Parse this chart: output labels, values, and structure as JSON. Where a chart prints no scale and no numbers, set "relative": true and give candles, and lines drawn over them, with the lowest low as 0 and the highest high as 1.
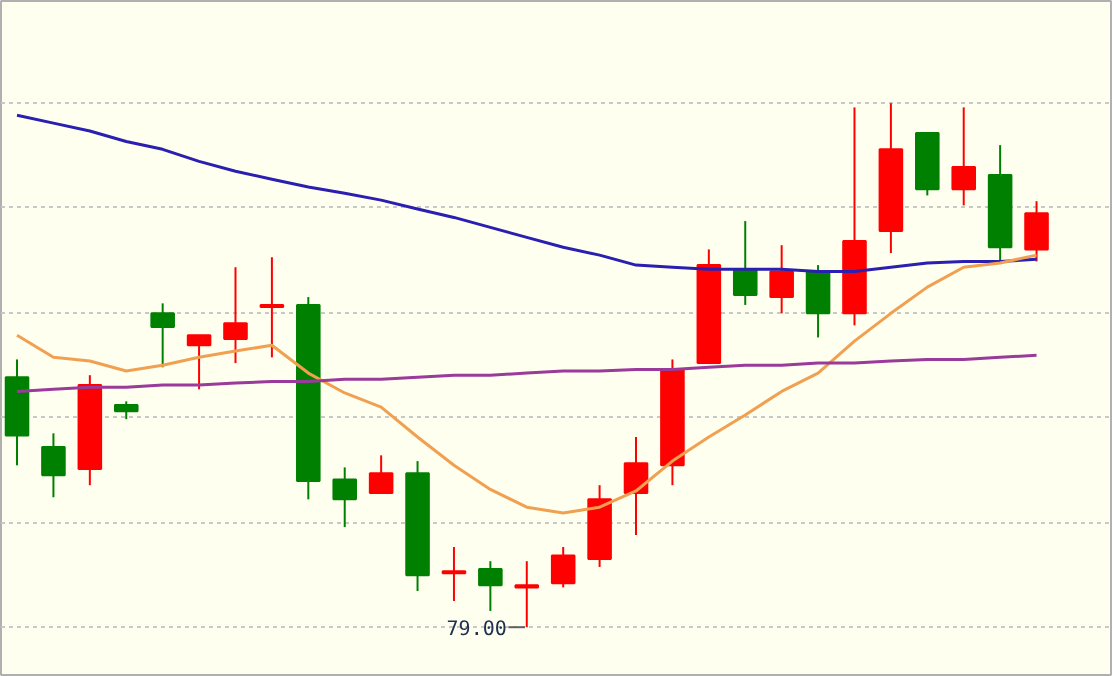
{
  "chart_data": {
    "type": "candlestick",
    "relative": true,
    "grid": "y",
    "categories": [
      null,
      null,
      null,
      null,
      null,
      null,
      null,
      null,
      null,
      null,
      null,
      null,
      null,
      null,
      null,
      null,
      null,
      null,
      null,
      null,
      null,
      null,
      null,
      null,
      null,
      null,
      null,
      null,
      null
    ],
    "ohlc": [
      [
        0.477,
        0.511,
        0.309,
        0.366
      ],
      [
        0.344,
        0.37,
        0.248,
        0.29
      ],
      [
        0.302,
        0.481,
        0.271,
        0.462
      ],
      [
        0.424,
        0.431,
        0.397,
        0.412
      ],
      [
        0.599,
        0.618,
        0.496,
        0.573
      ],
      [
        0.538,
        0.557,
        0.454,
        0.557
      ],
      [
        0.55,
        0.687,
        0.504,
        0.58
      ],
      [
        0.611,
        0.706,
        0.515,
        0.615
      ],
      [
        0.615,
        0.63,
        0.244,
        0.279
      ],
      [
        0.282,
        0.305,
        0.191,
        0.244
      ],
      [
        0.256,
        0.328,
        0.256,
        0.294
      ],
      [
        0.294,
        0.317,
        0.069,
        0.099
      ],
      [
        0.103,
        0.153,
        0.05,
        0.107
      ],
      [
        0.111,
        0.126,
        0.031,
        0.08
      ],
      [
        0.076,
        0.126,
        0,
        0.08
      ],
      [
        0.084,
        0.153,
        0.076,
        0.137
      ],
      [
        0.13,
        0.271,
        0.115,
        0.244
      ],
      [
        0.256,
        0.363,
        0.176,
        0.313
      ],
      [
        0.309,
        0.511,
        0.271,
        0.492
      ],
      [
        0.504,
        0.721,
        0.504,
        0.691
      ],
      [
        0.683,
        0.775,
        0.615,
        0.634
      ],
      [
        0.63,
        0.729,
        0.599,
        0.679
      ],
      [
        0.679,
        0.691,
        0.553,
        0.599
      ],
      [
        0.599,
        0.992,
        0.576,
        0.737
      ],
      [
        0.756,
        1,
        0.714,
        0.912
      ],
      [
        0.943,
        0.943,
        0.824,
        0.836
      ],
      [
        0.836,
        0.992,
        0.805,
        0.878
      ],
      [
        0.863,
        0.92,
        0.698,
        0.725
      ],
      [
        0.721,
        0.813,
        0.698,
        0.79
      ]
    ],
    "colors": [
      "#008000",
      "#008000",
      "#ff0000",
      "#008000",
      "#008000",
      "#ff0000",
      "#ff0000",
      "#ff0000",
      "#008000",
      "#008000",
      "#ff0000",
      "#008000",
      "#ff0000",
      "#008000",
      "#ff0000",
      "#ff0000",
      "#ff0000",
      "#ff0000",
      "#ff0000",
      "#ff0000",
      "#008000",
      "#ff0000",
      "#008000",
      "#ff0000",
      "#ff0000",
      "#008000",
      "#ff0000",
      "#008000",
      "#ff0000"
    ],
    "series": [
      {
        "type": "line",
        "color": "#2a1fb0",
        "values": [
          0.977,
          0.962,
          0.947,
          0.927,
          0.912,
          0.889,
          0.87,
          0.855,
          0.84,
          0.828,
          0.815,
          0.798,
          0.782,
          0.763,
          0.744,
          0.725,
          0.71,
          0.691,
          0.687,
          0.683,
          0.683,
          0.683,
          0.679,
          0.679,
          0.687,
          0.695,
          0.698,
          0.698,
          0.702
        ]
      },
      {
        "type": "line",
        "color": "#f0a050",
        "values": [
          0.557,
          0.515,
          0.508,
          0.489,
          0.5,
          0.515,
          0.527,
          0.538,
          0.485,
          0.447,
          0.42,
          0.363,
          0.309,
          0.263,
          0.229,
          0.218,
          0.229,
          0.26,
          0.317,
          0.363,
          0.405,
          0.45,
          0.485,
          0.546,
          0.599,
          0.649,
          0.687,
          0.695,
          0.71
        ]
      },
      {
        "type": "line",
        "color": "#9a3a9a",
        "values": [
          0.45,
          0.454,
          0.458,
          0.458,
          0.462,
          0.462,
          0.466,
          0.469,
          0.469,
          0.473,
          0.473,
          0.477,
          0.481,
          0.481,
          0.485,
          0.489,
          0.489,
          0.492,
          0.492,
          0.496,
          0.5,
          0.5,
          0.504,
          0.504,
          0.508,
          0.511,
          0.511,
          0.515,
          0.519
        ]
      }
    ],
    "annotations": [
      "79.00"
    ]
  }
}
